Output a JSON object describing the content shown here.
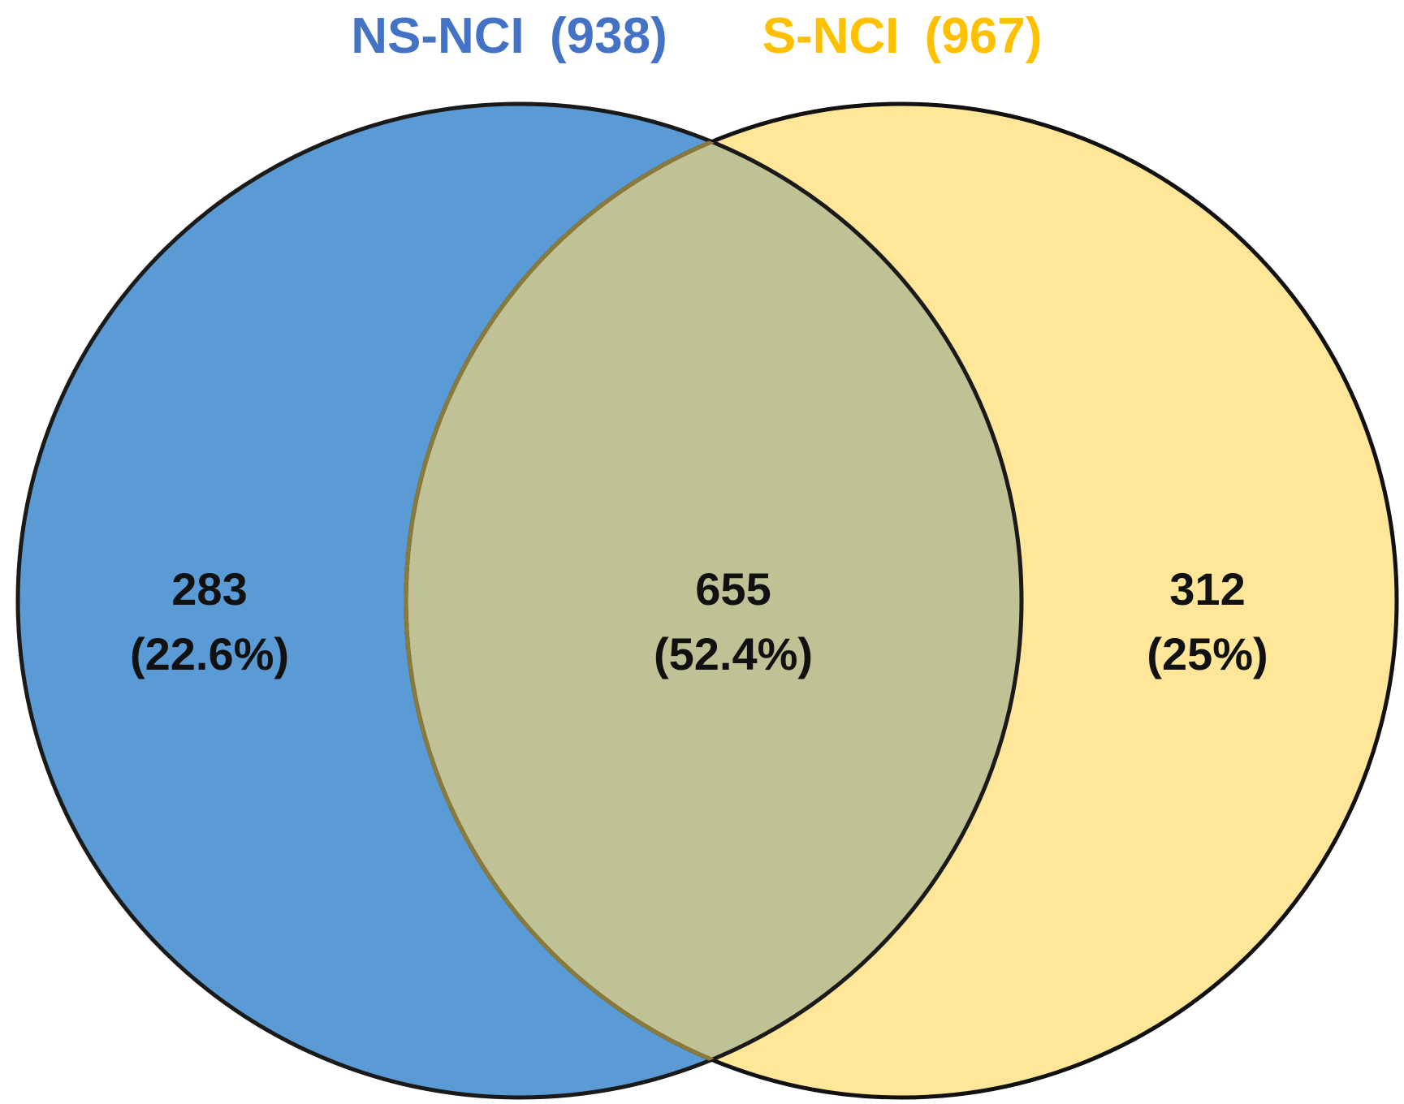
{
  "sets": [
    {
      "name": "NS-NCI",
      "total": "(938)",
      "color": "#5B9BD5"
    },
    {
      "name": "S-NCI",
      "total": "(967)",
      "color": "#FFE699"
    }
  ],
  "title_colors": {
    "NS-NCI": "#4472C4",
    "S-NCI": "#FFC000"
  },
  "overlap_color": "#C0C194",
  "regions": {
    "left_only": {
      "count": "283",
      "percent": "(22.6%)"
    },
    "both": {
      "count": "655",
      "percent": "(52.4%)"
    },
    "right_only": {
      "count": "312",
      "percent": "(25%)"
    }
  }
}
